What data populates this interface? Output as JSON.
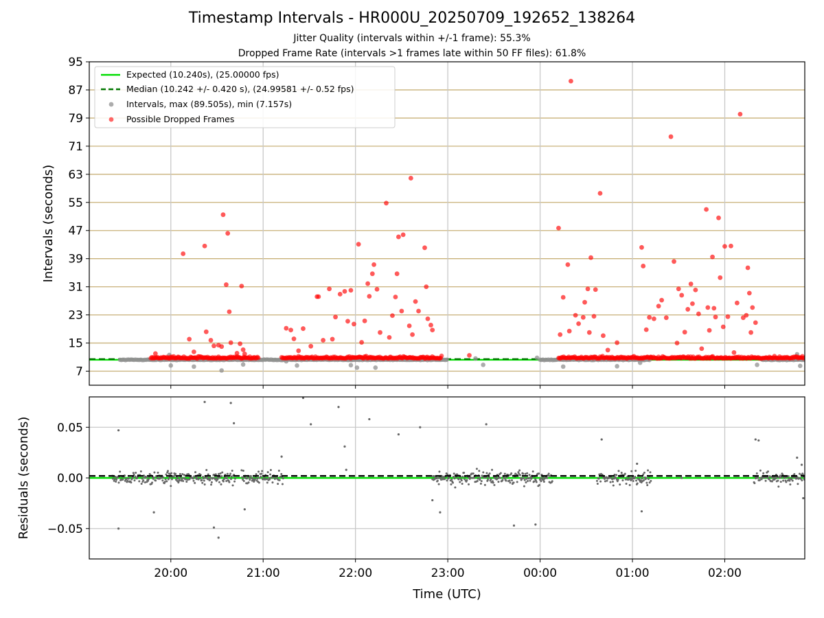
{
  "title": "Timestamp Intervals - HR000U_20250709_192652_138264",
  "subtitle1": "Jitter Quality (intervals within +/-1 frame): 55.3%",
  "subtitle2": "Dropped Frame Rate (intervals >1 frames late within 50 FF files): 61.8%",
  "colors": {
    "expected": "#00dd00",
    "median": "#007700",
    "intervals": "#909090",
    "dropped": "#ff0000",
    "hgrid": "#c8b078",
    "vgrid": "#c8c8c8",
    "residuals": "#666666"
  },
  "chart_data": [
    {
      "type": "scatter",
      "ylabel": "Intervals (seconds)",
      "ylim": [
        3,
        95
      ],
      "xlim": [
        "19:07",
        "02:52"
      ],
      "yticks": [
        "7",
        "15",
        "23",
        "31",
        "39",
        "47",
        "55",
        "63",
        "71",
        "79",
        "87",
        "95"
      ],
      "xticks": [
        "20:00",
        "21:00",
        "22:00",
        "23:00",
        "00:00",
        "01:00",
        "02:00"
      ],
      "grid": "on",
      "legend": {
        "placement": "top-left",
        "entries": [
          "Expected (10.240s), (25.00000 fps)",
          "Median (10.242 +/- 0.420 s), (24.99581 +/- 0.52 fps)",
          "Intervals, max (89.505s), min (7.157s)",
          "Possible Dropped Frames"
        ]
      },
      "expected_value": 10.24,
      "median_value": 10.242,
      "baseline_segments": [
        [
          "19:27",
          "23:00"
        ],
        [
          "00:00",
          "01:12"
        ],
        [
          "02:24",
          "02:52"
        ]
      ],
      "dropped_frames": [
        [
          "19:50",
          12.0
        ],
        [
          "20:08",
          40.4
        ],
        [
          "20:12",
          16.1
        ],
        [
          "20:15",
          12.5
        ],
        [
          "20:22",
          42.6
        ],
        [
          "20:23",
          18.2
        ],
        [
          "20:26",
          15.8
        ],
        [
          "20:28",
          14.2
        ],
        [
          "20:31",
          14.4
        ],
        [
          "20:33",
          14.0
        ],
        [
          "20:34",
          51.5
        ],
        [
          "20:36",
          31.6
        ],
        [
          "20:37",
          46.2
        ],
        [
          "20:38",
          23.9
        ],
        [
          "20:39",
          15.1
        ],
        [
          "20:43",
          12.1
        ],
        [
          "20:45",
          14.8
        ],
        [
          "20:46",
          31.2
        ],
        [
          "20:47",
          13.1
        ],
        [
          "20:48",
          11.9
        ],
        [
          "21:15",
          19.2
        ],
        [
          "21:18",
          18.7
        ],
        [
          "21:20",
          16.2
        ],
        [
          "21:23",
          12.8
        ],
        [
          "21:26",
          19.1
        ],
        [
          "21:31",
          14.1
        ],
        [
          "21:35",
          28.2
        ],
        [
          "21:36",
          28.2
        ],
        [
          "21:39",
          15.8
        ],
        [
          "21:43",
          30.4
        ],
        [
          "21:45",
          16.1
        ],
        [
          "21:47",
          22.4
        ],
        [
          "21:50",
          28.9
        ],
        [
          "21:53",
          29.7
        ],
        [
          "21:55",
          21.2
        ],
        [
          "21:57",
          30.0
        ],
        [
          "21:59",
          20.4
        ],
        [
          "22:02",
          43.1
        ],
        [
          "22:04",
          15.2
        ],
        [
          "22:06",
          21.3
        ],
        [
          "22:08",
          31.9
        ],
        [
          "22:09",
          28.3
        ],
        [
          "22:11",
          34.7
        ],
        [
          "22:12",
          37.3
        ],
        [
          "22:14",
          30.3
        ],
        [
          "22:16",
          18.0
        ],
        [
          "22:20",
          54.8
        ],
        [
          "22:22",
          16.6
        ],
        [
          "22:24",
          22.8
        ],
        [
          "22:26",
          28.1
        ],
        [
          "22:27",
          34.7
        ],
        [
          "22:28",
          45.2
        ],
        [
          "22:30",
          24.1
        ],
        [
          "22:31",
          45.8
        ],
        [
          "22:35",
          19.9
        ],
        [
          "22:36",
          61.9
        ],
        [
          "22:37",
          17.4
        ],
        [
          "22:39",
          26.8
        ],
        [
          "22:41",
          24.1
        ],
        [
          "22:45",
          42.1
        ],
        [
          "22:46",
          31.0
        ],
        [
          "22:47",
          21.9
        ],
        [
          "22:49",
          20.1
        ],
        [
          "22:50",
          18.7
        ],
        [
          "23:14",
          11.5
        ],
        [
          "00:12",
          47.7
        ],
        [
          "00:13",
          17.4
        ],
        [
          "00:15",
          28.0
        ],
        [
          "00:18",
          37.3
        ],
        [
          "00:19",
          18.4
        ],
        [
          "00:20",
          89.5
        ],
        [
          "00:23",
          22.9
        ],
        [
          "00:25",
          20.5
        ],
        [
          "00:28",
          22.3
        ],
        [
          "00:29",
          26.6
        ],
        [
          "00:31",
          30.4
        ],
        [
          "00:32",
          18.0
        ],
        [
          "00:33",
          39.3
        ],
        [
          "00:35",
          22.6
        ],
        [
          "00:36",
          30.2
        ],
        [
          "00:39",
          57.6
        ],
        [
          "00:41",
          17.1
        ],
        [
          "00:44",
          13.0
        ],
        [
          "00:50",
          15.1
        ],
        [
          "01:06",
          42.2
        ],
        [
          "01:07",
          36.9
        ],
        [
          "01:09",
          18.8
        ],
        [
          "01:11",
          22.3
        ],
        [
          "01:14",
          21.9
        ],
        [
          "01:17",
          25.5
        ],
        [
          "01:19",
          27.2
        ],
        [
          "01:22",
          22.2
        ],
        [
          "01:25",
          73.7
        ],
        [
          "01:27",
          38.2
        ],
        [
          "01:29",
          15.0
        ],
        [
          "01:30",
          30.4
        ],
        [
          "01:32",
          28.6
        ],
        [
          "01:34",
          18.1
        ],
        [
          "01:36",
          24.6
        ],
        [
          "01:38",
          31.8
        ],
        [
          "01:39",
          26.2
        ],
        [
          "01:41",
          30.1
        ],
        [
          "01:43",
          23.3
        ],
        [
          "01:45",
          13.4
        ],
        [
          "01:48",
          53.0
        ],
        [
          "01:49",
          25.1
        ],
        [
          "01:50",
          18.6
        ],
        [
          "01:52",
          39.5
        ],
        [
          "01:53",
          24.9
        ],
        [
          "01:54",
          22.4
        ],
        [
          "01:56",
          50.6
        ],
        [
          "01:57",
          33.6
        ],
        [
          "01:59",
          19.6
        ],
        [
          "02:00",
          42.5
        ],
        [
          "02:02",
          22.5
        ],
        [
          "02:04",
          42.6
        ],
        [
          "02:06",
          12.3
        ],
        [
          "02:08",
          26.4
        ],
        [
          "02:10",
          80.1
        ],
        [
          "02:12",
          22.2
        ],
        [
          "02:14",
          22.9
        ],
        [
          "02:15",
          36.4
        ],
        [
          "02:16",
          29.2
        ],
        [
          "02:17",
          18.0
        ],
        [
          "02:18",
          25.1
        ],
        [
          "02:20",
          20.8
        ]
      ]
    },
    {
      "type": "scatter",
      "xlabel": "Time (UTC)",
      "ylabel": "Residuals (seconds)",
      "ylim": [
        -0.08,
        0.08
      ],
      "yticks": [
        "0.05",
        "0.00",
        "−0.05"
      ],
      "xticks": [
        "20:00",
        "21:00",
        "22:00",
        "23:00",
        "00:00",
        "01:00",
        "02:00"
      ],
      "grid": "on",
      "expected_value": 0.0,
      "median_value": 0.002,
      "residual_clusters": [
        [
          "19:22",
          "20:42"
        ],
        [
          "20:46",
          "21:13"
        ],
        [
          "22:50",
          "00:08"
        ],
        [
          "00:37",
          "01:12"
        ],
        [
          "02:19",
          "02:52"
        ]
      ],
      "outliers": [
        [
          "19:26",
          0.047
        ],
        [
          "19:26",
          -0.05
        ],
        [
          "19:49",
          -0.034
        ],
        [
          "20:22",
          0.075
        ],
        [
          "20:28",
          -0.049
        ],
        [
          "20:31",
          -0.059
        ],
        [
          "20:39",
          0.074
        ],
        [
          "20:41",
          0.054
        ],
        [
          "20:48",
          -0.031
        ],
        [
          "21:12",
          0.021
        ],
        [
          "21:26",
          0.079
        ],
        [
          "21:31",
          0.053
        ],
        [
          "21:49",
          0.07
        ],
        [
          "21:53",
          0.031
        ],
        [
          "21:54",
          0.008
        ],
        [
          "22:09",
          0.058
        ],
        [
          "22:28",
          0.043
        ],
        [
          "22:42",
          0.05
        ],
        [
          "22:50",
          -0.022
        ],
        [
          "22:55",
          -0.034
        ],
        [
          "23:25",
          0.053
        ],
        [
          "23:43",
          -0.047
        ],
        [
          "23:57",
          -0.046
        ],
        [
          "00:40",
          0.038
        ],
        [
          "01:03",
          0.014
        ],
        [
          "01:06",
          -0.033
        ],
        [
          "01:32",
          0.0
        ],
        [
          "02:20",
          0.038
        ],
        [
          "02:22",
          0.037
        ],
        [
          "02:47",
          0.02
        ],
        [
          "02:51",
          -0.02
        ],
        [
          "02:50",
          0.013
        ]
      ]
    }
  ]
}
